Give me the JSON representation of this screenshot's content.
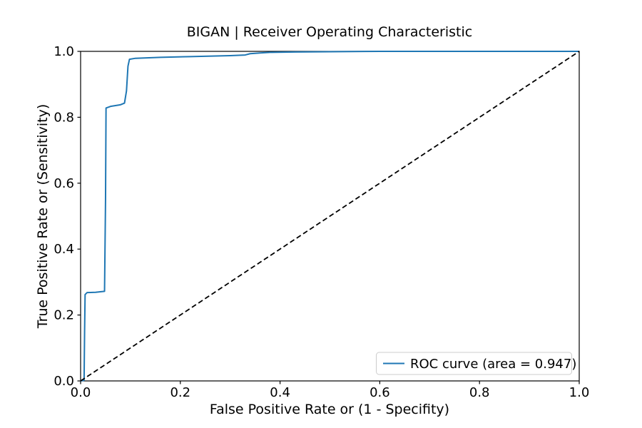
{
  "chart_data": {
    "type": "line",
    "title": "BIGAN | Receiver Operating Characteristic",
    "xlabel": "False Positive Rate or (1 - Specifity)",
    "ylabel": "True Positive Rate or (Sensitivity)",
    "xlim": [
      0.0,
      1.0
    ],
    "ylim": [
      0.0,
      1.0
    ],
    "x_ticks": [
      0.0,
      0.2,
      0.4,
      0.6,
      0.8,
      1.0
    ],
    "y_ticks": [
      0.0,
      0.2,
      0.4,
      0.6,
      0.8,
      1.0
    ],
    "x_tick_labels": [
      "0.0",
      "0.2",
      "0.4",
      "0.6",
      "0.8",
      "1.0"
    ],
    "y_tick_labels": [
      "0.0",
      "0.2",
      "0.4",
      "0.6",
      "0.8",
      "1.0"
    ],
    "grid": false,
    "auc": 0.947,
    "colors": {
      "roc_curve": "#1f77b4",
      "chance_line": "#000000",
      "axes": "#000000",
      "legend_border": "#cccccc"
    },
    "legend": {
      "position": "lower right",
      "entries": [
        {
          "label": "ROC curve (area = 0.947)",
          "color": "#1f77b4",
          "style": "solid"
        }
      ]
    },
    "series": [
      {
        "name": "ROC curve (area = 0.947)",
        "color": "#1f77b4",
        "style": "solid",
        "points": [
          [
            0.0,
            0.0
          ],
          [
            0.007,
            0.002
          ],
          [
            0.008,
            0.15
          ],
          [
            0.009,
            0.262
          ],
          [
            0.013,
            0.268
          ],
          [
            0.03,
            0.269
          ],
          [
            0.048,
            0.272
          ],
          [
            0.05,
            0.55
          ],
          [
            0.051,
            0.828
          ],
          [
            0.06,
            0.833
          ],
          [
            0.08,
            0.838
          ],
          [
            0.088,
            0.843
          ],
          [
            0.092,
            0.88
          ],
          [
            0.095,
            0.955
          ],
          [
            0.098,
            0.976
          ],
          [
            0.11,
            0.979
          ],
          [
            0.16,
            0.982
          ],
          [
            0.22,
            0.984
          ],
          [
            0.3,
            0.987
          ],
          [
            0.33,
            0.989
          ],
          [
            0.34,
            0.993
          ],
          [
            0.36,
            0.995
          ],
          [
            0.38,
            0.997
          ],
          [
            0.43,
            0.998
          ],
          [
            0.5,
            0.999
          ],
          [
            0.6,
            1.0
          ],
          [
            1.0,
            1.0
          ]
        ]
      },
      {
        "name": "chance-diagonal",
        "color": "#000000",
        "style": "dashed",
        "points": [
          [
            0.0,
            0.0
          ],
          [
            1.0,
            1.0
          ]
        ]
      }
    ]
  }
}
